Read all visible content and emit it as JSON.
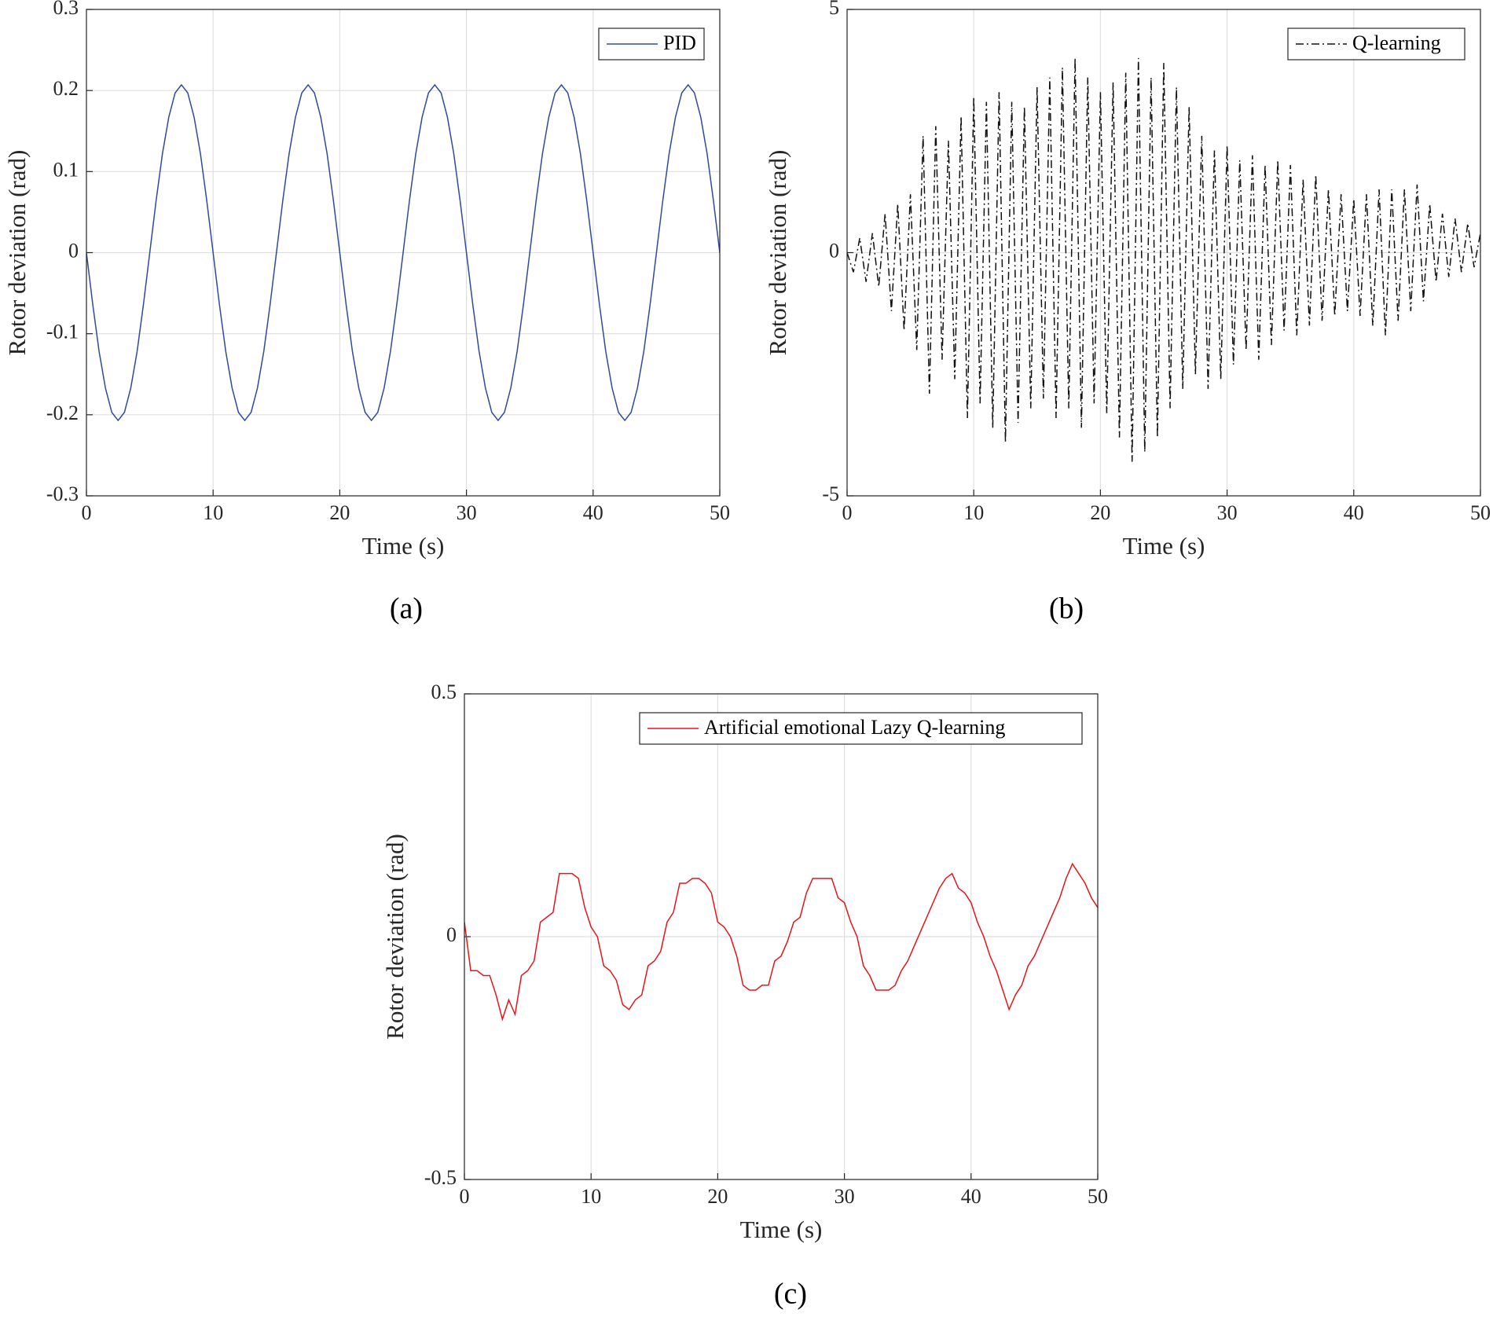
{
  "chart_data": [
    {
      "type": "line",
      "label": "(a)",
      "xlabel": "Time (s)",
      "ylabel": "Rotor deviation (rad)",
      "xlim": [
        0,
        50
      ],
      "xticks": [
        0,
        10,
        20,
        30,
        40,
        50
      ],
      "ylim": [
        -0.3,
        0.3
      ],
      "yticks": [
        -0.3,
        -0.2,
        -0.1,
        0,
        0.1,
        0.2,
        0.3
      ],
      "grid": true,
      "legend": "upper right",
      "x": [
        0,
        0.5,
        1,
        1.5,
        2,
        2.5,
        3,
        3.5,
        4,
        4.5,
        5,
        5.5,
        6,
        6.5,
        7,
        7.5,
        8,
        8.5,
        9,
        9.5,
        10,
        10.5,
        11,
        11.5,
        12,
        12.5,
        13,
        13.5,
        14,
        14.5,
        15,
        15.5,
        16,
        16.5,
        17,
        17.5,
        18,
        18.5,
        19,
        19.5,
        20,
        20.5,
        21,
        21.5,
        22,
        22.5,
        23,
        23.5,
        24,
        24.5,
        25,
        25.5,
        26,
        26.5,
        27,
        27.5,
        28,
        28.5,
        29,
        29.5,
        30,
        30.5,
        31,
        31.5,
        32,
        32.5,
        33,
        33.5,
        34,
        34.5,
        35,
        35.5,
        36,
        36.5,
        37,
        37.5,
        38,
        38.5,
        39,
        39.5,
        40,
        40.5,
        41,
        41.5,
        42,
        42.5,
        43,
        43.5,
        44,
        44.5,
        45,
        45.5,
        46,
        46.5,
        47,
        47.5,
        48,
        48.5,
        49,
        49.5,
        50
      ],
      "series": [
        {
          "name": "PID",
          "color": "#2f4b9c",
          "linestyle": "solid",
          "values": [
            0,
            -0.064,
            -0.122,
            -0.167,
            -0.197,
            -0.207,
            -0.197,
            -0.167,
            -0.122,
            -0.064,
            0,
            0.064,
            0.122,
            0.167,
            0.197,
            0.207,
            0.197,
            0.167,
            0.122,
            0.064,
            0,
            -0.064,
            -0.122,
            -0.167,
            -0.197,
            -0.207,
            -0.197,
            -0.167,
            -0.122,
            -0.064,
            0,
            0.064,
            0.122,
            0.167,
            0.197,
            0.207,
            0.197,
            0.167,
            0.122,
            0.064,
            0,
            -0.064,
            -0.122,
            -0.167,
            -0.197,
            -0.207,
            -0.197,
            -0.167,
            -0.122,
            -0.064,
            0,
            0.064,
            0.122,
            0.167,
            0.197,
            0.207,
            0.197,
            0.167,
            0.122,
            0.064,
            0,
            -0.064,
            -0.122,
            -0.167,
            -0.197,
            -0.207,
            -0.197,
            -0.167,
            -0.122,
            -0.064,
            0,
            0.064,
            0.122,
            0.167,
            0.197,
            0.207,
            0.197,
            0.167,
            0.122,
            0.064,
            0,
            -0.064,
            -0.122,
            -0.167,
            -0.197,
            -0.207,
            -0.197,
            -0.167,
            -0.122,
            -0.064,
            0,
            0.064,
            0.122,
            0.167,
            0.197,
            0.207,
            0.197,
            0.167,
            0.122,
            0.064,
            0
          ]
        }
      ]
    },
    {
      "type": "line",
      "label": "(b)",
      "xlabel": "Time (s)",
      "ylabel": "Rotor deviation (rad)",
      "xlim": [
        0,
        50
      ],
      "xticks": [
        0,
        10,
        20,
        30,
        40,
        50
      ],
      "ylim": [
        -5,
        5
      ],
      "yticks": [
        -5,
        0,
        5
      ],
      "grid": true,
      "legend": "upper right",
      "x": [
        0,
        0.5,
        1,
        1.5,
        2,
        2.5,
        3,
        3.5,
        4,
        4.5,
        5,
        5.5,
        6,
        6.5,
        7,
        7.5,
        8,
        8.5,
        9,
        9.5,
        10,
        10.5,
        11,
        11.5,
        12,
        12.5,
        13,
        13.5,
        14,
        14.5,
        15,
        15.5,
        16,
        16.5,
        17,
        17.5,
        18,
        18.5,
        19,
        19.5,
        20,
        20.5,
        21,
        21.5,
        22,
        22.5,
        23,
        23.5,
        24,
        24.5,
        25,
        25.5,
        26,
        26.5,
        27,
        27.5,
        28,
        28.5,
        29,
        29.5,
        30,
        30.5,
        31,
        31.5,
        32,
        32.5,
        33,
        33.5,
        34,
        34.5,
        35,
        35.5,
        36,
        36.5,
        37,
        37.5,
        38,
        38.5,
        39,
        39.5,
        40,
        40.5,
        41,
        41.5,
        42,
        42.5,
        43,
        43.5,
        44,
        44.5,
        45,
        45.5,
        46,
        46.5,
        47,
        47.5,
        48,
        48.5,
        49,
        49.5,
        50
      ],
      "series": [
        {
          "name": "Q-learning",
          "color": "#111111",
          "linestyle": "dashdot",
          "values": [
            0,
            -0.4,
            0.3,
            -0.6,
            0.4,
            -0.7,
            0.8,
            -1.2,
            1.0,
            -1.6,
            1.2,
            -2.0,
            2.4,
            -2.9,
            2.6,
            -2.2,
            2.3,
            -2.6,
            2.8,
            -3.4,
            3.2,
            -3.1,
            3.1,
            -3.6,
            3.3,
            -3.9,
            3.1,
            -3.5,
            3.0,
            -3.2,
            3.4,
            -3.0,
            3.6,
            -3.4,
            3.8,
            -3.2,
            4.0,
            -3.6,
            3.6,
            -3.1,
            3.3,
            -3.3,
            3.5,
            -3.8,
            3.7,
            -4.3,
            4.0,
            -4.1,
            3.6,
            -3.8,
            3.9,
            -3.2,
            3.4,
            -2.8,
            3.0,
            -2.5,
            2.4,
            -2.8,
            2.1,
            -2.6,
            2.2,
            -2.3,
            1.9,
            -2.0,
            2.0,
            -2.2,
            1.8,
            -1.9,
            1.9,
            -1.6,
            1.8,
            -1.7,
            1.5,
            -1.5,
            1.6,
            -1.4,
            1.3,
            -1.3,
            1.2,
            -1.2,
            1.1,
            -1.3,
            1.2,
            -1.5,
            1.3,
            -1.7,
            1.3,
            -1.4,
            1.3,
            -1.2,
            1.4,
            -1.0,
            1.0,
            -0.6,
            0.8,
            -0.5,
            0.7,
            -0.4,
            0.6,
            -0.3,
            0.4
          ]
        }
      ]
    },
    {
      "type": "line",
      "label": "(c)",
      "xlabel": "Time (s)",
      "ylabel": "Rotor deviation (rad)",
      "xlim": [
        0,
        50
      ],
      "xticks": [
        0,
        10,
        20,
        30,
        40,
        50
      ],
      "ylim": [
        -0.5,
        0.5
      ],
      "yticks": [
        -0.5,
        0,
        0.5
      ],
      "grid": true,
      "legend": "upper right",
      "x": [
        0,
        0.5,
        1,
        1.5,
        2,
        2.5,
        3,
        3.5,
        4,
        4.5,
        5,
        5.5,
        6,
        6.5,
        7,
        7.5,
        8,
        8.5,
        9,
        9.5,
        10,
        10.5,
        11,
        11.5,
        12,
        12.5,
        13,
        13.5,
        14,
        14.5,
        15,
        15.5,
        16,
        16.5,
        17,
        17.5,
        18,
        18.5,
        19,
        19.5,
        20,
        20.5,
        21,
        21.5,
        22,
        22.5,
        23,
        23.5,
        24,
        24.5,
        25,
        25.5,
        26,
        26.5,
        27,
        27.5,
        28,
        28.5,
        29,
        29.5,
        30,
        30.5,
        31,
        31.5,
        32,
        32.5,
        33,
        33.5,
        34,
        34.5,
        35,
        35.5,
        36,
        36.5,
        37,
        37.5,
        38,
        38.5,
        39,
        39.5,
        40,
        40.5,
        41,
        41.5,
        42,
        42.5,
        43,
        43.5,
        44,
        44.5,
        45,
        45.5,
        46,
        46.5,
        47,
        47.5,
        48,
        48.5,
        49,
        49.5,
        50
      ],
      "series": [
        {
          "name": "Artificial emotional Lazy Q-learning",
          "color": "#e8141b",
          "linestyle": "solid",
          "values": [
            0.03,
            -0.07,
            -0.07,
            -0.08,
            -0.08,
            -0.12,
            -0.17,
            -0.13,
            -0.16,
            -0.08,
            -0.07,
            -0.05,
            0.03,
            0.04,
            0.05,
            0.13,
            0.13,
            0.13,
            0.12,
            0.06,
            0.02,
            0.0,
            -0.06,
            -0.07,
            -0.09,
            -0.14,
            -0.15,
            -0.13,
            -0.12,
            -0.06,
            -0.05,
            -0.03,
            0.03,
            0.05,
            0.11,
            0.11,
            0.12,
            0.12,
            0.11,
            0.09,
            0.03,
            0.02,
            0.0,
            -0.04,
            -0.1,
            -0.11,
            -0.11,
            -0.1,
            -0.1,
            -0.05,
            -0.04,
            -0.01,
            0.03,
            0.04,
            0.09,
            0.12,
            0.12,
            0.12,
            0.12,
            0.08,
            0.07,
            0.03,
            0.0,
            -0.06,
            -0.08,
            -0.11,
            -0.11,
            -0.11,
            -0.1,
            -0.07,
            -0.05,
            -0.02,
            0.01,
            0.04,
            0.07,
            0.1,
            0.12,
            0.13,
            0.1,
            0.09,
            0.07,
            0.03,
            0.0,
            -0.04,
            -0.07,
            -0.11,
            -0.15,
            -0.12,
            -0.1,
            -0.06,
            -0.04,
            -0.01,
            0.02,
            0.05,
            0.08,
            0.12,
            0.15,
            0.13,
            0.11,
            0.08,
            0.06
          ]
        }
      ]
    }
  ]
}
